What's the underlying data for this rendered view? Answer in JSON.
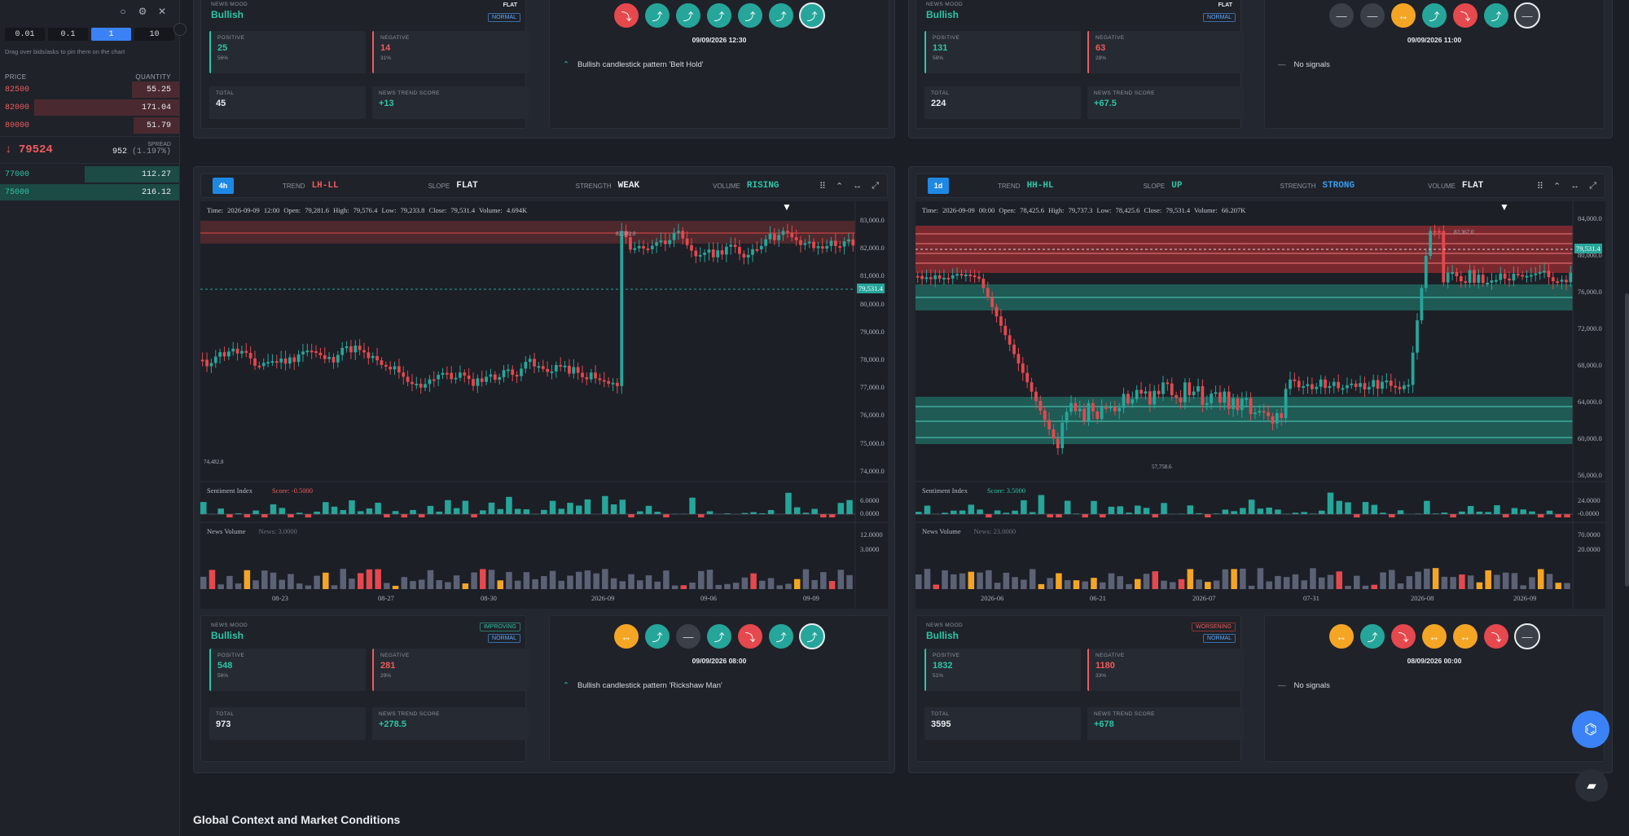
{
  "sidebar": {
    "granularity": [
      "0.01",
      "0.1",
      "1",
      "10"
    ],
    "active_granularity": "1",
    "hint": "Drag over bids/asks to pin them on the chart",
    "headers": {
      "price": "PRICE",
      "quantity": "QUANTITY"
    },
    "asks": [
      {
        "price": "82500",
        "qty": "55.25"
      },
      {
        "price": "82000",
        "qty": "171.04"
      },
      {
        "price": "80000",
        "qty": "51.79"
      }
    ],
    "last_price": "79524",
    "spread_label": "SPREAD",
    "spread_value": "952",
    "spread_pct": "(1.197%)",
    "bids": [
      {
        "price": "77000",
        "qty": "112.27"
      },
      {
        "price": "75000",
        "qty": "216.12"
      }
    ]
  },
  "labels": {
    "news_mood": "NEWS MOOD",
    "positive": "POSITIVE",
    "negative": "NEGATIVE",
    "total": "TOTAL",
    "trend_score": "NEWS TREND SCORE",
    "trend": "TREND",
    "slope": "SLOPE",
    "strength": "STRENGTH",
    "volume": "VOLUME",
    "sentiment_index": "Sentiment Index",
    "news_volume": "News Volume"
  },
  "panels": {
    "top_left": {
      "mood": "Bullish",
      "tag1": "FLAT",
      "tag2": "NORMAL",
      "positive": "25",
      "positive_pct": "56%",
      "negative": "14",
      "negative_pct": "31%",
      "total": "45",
      "score": "+13",
      "signals": [
        "down",
        "up",
        "up",
        "up",
        "up",
        "up",
        "up"
      ],
      "date": "09/09/2026 12:30",
      "message": "Bullish candlestick pattern 'Belt Hold'"
    },
    "top_right": {
      "mood": "Bullish",
      "tag1": "FLAT",
      "tag2": "NORMAL",
      "positive": "131",
      "positive_pct": "58%",
      "negative": "63",
      "negative_pct": "28%",
      "total": "224",
      "score": "+67.5",
      "signals": [
        "flat",
        "flat",
        "sideways",
        "up",
        "down",
        "up",
        "flat"
      ],
      "date": "09/09/2026 11:00",
      "message": "No signals"
    },
    "chart_left": {
      "timeframe": "4h",
      "trend": "LH-LL",
      "slope": "FLAT",
      "strength": "WEAK",
      "volume": "RISING",
      "ohlc": "Time: 2026-09-09 12:00   Open: 79,281.6   High: 79,576.4   Low: 79,233.8   Close: 79,531.4   Volume: 4.694K",
      "price_tag": "79,531.4",
      "high_label": "82,382.8",
      "low_label": "74,482.8",
      "sentiment_score": "Score: -0.5000",
      "news_count": "News: 3.0000",
      "y_ticks": [
        "83,000.0",
        "82,000.0",
        "81,000.0",
        "80,000.0",
        "79,000.0",
        "78,000.0",
        "77,000.0",
        "76,000.0",
        "75,000.0",
        "74,000.0"
      ],
      "sent_ticks": [
        "6.0000",
        "0.0000"
      ],
      "news_ticks": [
        "12.0000",
        "3.0000"
      ],
      "x_ticks": [
        "08-23",
        "08-27",
        "08-30",
        "2026-09",
        "09-06",
        "09-09"
      ]
    },
    "chart_right": {
      "timeframe": "1d",
      "trend": "HH-HL",
      "slope": "UP",
      "strength": "STRONG",
      "volume": "FLAT",
      "ohlc": "Time: 2026-09-09 00:00   Open: 78,425.6   High: 79,737.3   Low: 78,425.6   Close: 79,531.4   Volume: 66.207K",
      "price_tag": "79,531.4",
      "high_label": "82,367.0",
      "low_label": "57,758.6",
      "sentiment_score": "Score: 3.5000",
      "news_count": "News: 23.0000",
      "y_ticks": [
        "84,000.0",
        "80,000.0",
        "76,000.0",
        "72,000.0",
        "68,000.0",
        "64,000.0",
        "60,000.0",
        "56,000.0"
      ],
      "sent_ticks": [
        "24.0000",
        "-0.0000"
      ],
      "news_ticks": [
        "70.0000",
        "20.0000"
      ],
      "x_ticks": [
        "2026-06",
        "06-21",
        "2026-07",
        "07-31",
        "2026-08",
        "2026-09"
      ]
    },
    "bottom_left": {
      "mood": "Bullish",
      "tag1": "IMPROVING",
      "tag2": "NORMAL",
      "positive": "548",
      "positive_pct": "56%",
      "negative": "281",
      "negative_pct": "29%",
      "total": "973",
      "score": "+278.5",
      "signals": [
        "sideways",
        "up",
        "flat",
        "up",
        "down",
        "up",
        "up"
      ],
      "date": "09/09/2026 08:00",
      "message": "Bullish candlestick pattern 'Rickshaw Man'"
    },
    "bottom_right": {
      "mood": "Bullish",
      "tag1": "WORSENING",
      "tag2": "NORMAL",
      "positive": "1832",
      "positive_pct": "51%",
      "negative": "1180",
      "negative_pct": "33%",
      "total": "3595",
      "score": "+678",
      "signals": [
        "sideways",
        "up",
        "down",
        "sideways",
        "sideways",
        "down",
        "flat"
      ],
      "date": "08/09/2026 00:00",
      "message": "No signals"
    }
  },
  "section_title": "Global Context and Market Conditions",
  "colors": {
    "up": "#26a69a",
    "down": "#e5484d",
    "accent": "#1e88e5"
  }
}
